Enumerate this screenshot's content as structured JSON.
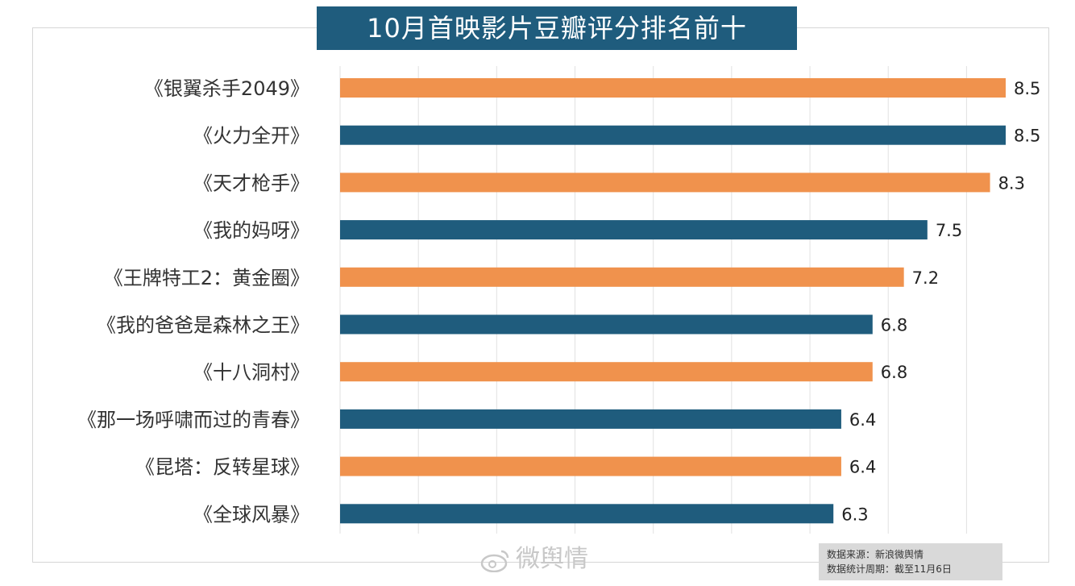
{
  "title": "10月首映影片豆瓣评分排名前十",
  "source": {
    "line1": "数据来源：新浪微舆情",
    "line2": "数据统计周期：截至11月6日"
  },
  "watermark": "微舆情",
  "colors": {
    "orange": "#f0924d",
    "blue": "#1f5c7d",
    "title_bg": "#1f5c7d",
    "grid": "#e1e1e1"
  },
  "chart_data": {
    "type": "bar",
    "orientation": "horizontal",
    "title": "10月首映影片豆瓣评分排名前十",
    "categories": [
      "《银翼杀手2049》",
      "《火力全开》",
      "《天才枪手》",
      "《我的妈呀》",
      "《王牌特工2：黄金圈》",
      "《我的爸爸是森林之王》",
      "《十八洞村》",
      "《那一场呼啸而过的青春》",
      "《昆塔：反转星球》",
      "《全球风暴》"
    ],
    "values": [
      8.5,
      8.5,
      8.3,
      7.5,
      7.2,
      6.8,
      6.8,
      6.4,
      6.4,
      6.3
    ],
    "value_labels": [
      "8.5",
      "8.5",
      "8.3",
      "7.5",
      "7.2",
      "6.8",
      "6.8",
      "6.4",
      "6.4",
      "6.3"
    ],
    "bar_colors": [
      "#f0924d",
      "#1f5c7d",
      "#f0924d",
      "#1f5c7d",
      "#f0924d",
      "#1f5c7d",
      "#f0924d",
      "#1f5c7d",
      "#f0924d",
      "#1f5c7d"
    ],
    "xlim": [
      0,
      8.5
    ],
    "grid": true,
    "legend": "none"
  }
}
